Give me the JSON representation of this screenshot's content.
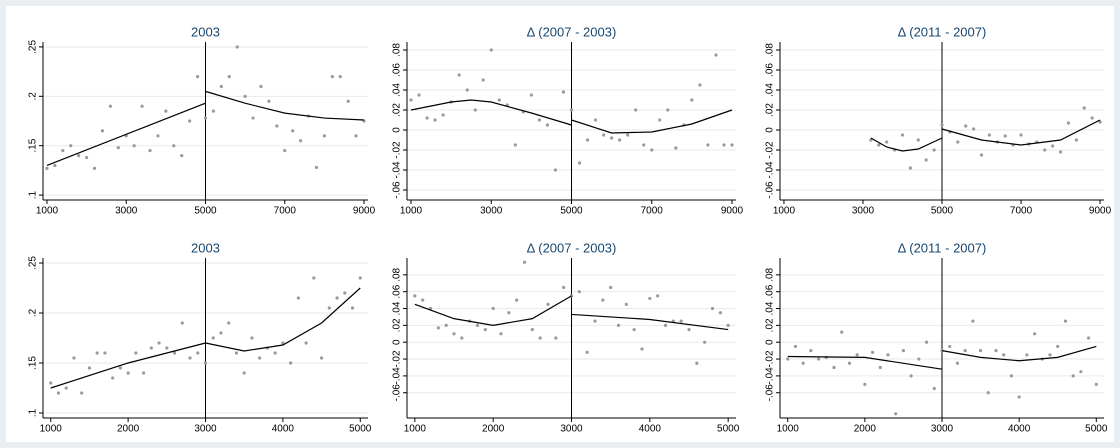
{
  "chart_data": [
    {
      "type": "scatter",
      "title": "2003",
      "points": {
        "color": "#9a9a9a",
        "x": [
          1000,
          1200,
          1400,
          1600,
          1800,
          2000,
          2200,
          2400,
          2600,
          2800,
          3000,
          3200,
          3400,
          3600,
          3800,
          4000,
          4200,
          4400,
          4600,
          4800,
          5000,
          5200,
          5400,
          5600,
          5800,
          6000,
          6200,
          6400,
          6600,
          6800,
          7000,
          7200,
          7400,
          7600,
          7800,
          8000,
          8200,
          8400,
          8600,
          8800,
          9000
        ],
        "values": [
          0.127,
          0.13,
          0.145,
          0.15,
          0.14,
          0.138,
          0.127,
          0.165,
          0.19,
          0.148,
          0.16,
          0.15,
          0.19,
          0.145,
          0.16,
          0.185,
          0.15,
          0.14,
          0.175,
          0.22,
          0.178,
          0.185,
          0.21,
          0.22,
          0.25,
          0.2,
          0.178,
          0.21,
          0.195,
          0.17,
          0.145,
          0.165,
          0.155,
          0.18,
          0.128,
          0.16,
          0.22,
          0.22,
          0.195,
          0.16,
          0.175
        ]
      },
      "fits": [
        {
          "x": [
            1000,
            5000
          ],
          "values": [
            0.13,
            0.193
          ]
        },
        {
          "x": [
            5000,
            6000,
            7000,
            8000,
            9000
          ],
          "values": [
            0.205,
            0.193,
            0.183,
            0.178,
            0.176
          ]
        }
      ],
      "fit_color": "#000000",
      "cutoff": 5000,
      "xlim": [
        900,
        9100
      ],
      "ylim": [
        0.095,
        0.255
      ],
      "xticks": [
        1000,
        3000,
        5000,
        7000,
        9000
      ],
      "yticks": [
        {
          "value": 0.1,
          "label": ".1"
        },
        {
          "value": 0.15,
          "label": ".15"
        },
        {
          "value": 0.2,
          "label": ".2"
        },
        {
          "value": 0.25,
          "label": ".25"
        }
      ],
      "grid": true
    },
    {
      "type": "scatter",
      "title": "Δ (2007 - 2003)",
      "points": {
        "color": "#9a9a9a",
        "x": [
          1000,
          1200,
          1400,
          1600,
          1800,
          2000,
          2200,
          2400,
          2600,
          2800,
          3000,
          3200,
          3400,
          3600,
          3800,
          4000,
          4200,
          4400,
          4600,
          4800,
          5000,
          5200,
          5400,
          5600,
          5800,
          6000,
          6200,
          6400,
          6600,
          6800,
          7000,
          7200,
          7400,
          7600,
          7800,
          8000,
          8200,
          8400,
          8600,
          8800,
          9000
        ],
        "values": [
          0.03,
          0.035,
          0.012,
          0.01,
          0.015,
          0.028,
          0.055,
          0.04,
          0.02,
          0.05,
          0.08,
          0.03,
          0.025,
          -0.015,
          0.018,
          0.035,
          0.01,
          0.005,
          -0.04,
          0.038,
          0.02,
          -0.033,
          -0.01,
          0.01,
          -0.005,
          -0.008,
          -0.01,
          -0.005,
          0.02,
          -0.015,
          -0.02,
          0.01,
          0.02,
          -0.018,
          0.005,
          0.03,
          0.045,
          -0.015,
          0.075,
          -0.015,
          -0.015
        ]
      },
      "fits": [
        {
          "x": [
            1000,
            2000,
            2500,
            3000,
            4000,
            5000
          ],
          "values": [
            0.02,
            0.028,
            0.03,
            0.028,
            0.017,
            0.005
          ]
        },
        {
          "x": [
            5000,
            6000,
            7000,
            8000,
            9000
          ],
          "values": [
            0.01,
            -0.003,
            -0.002,
            0.006,
            0.02
          ]
        }
      ],
      "fit_color": "#000000",
      "cutoff": 5000,
      "xlim": [
        900,
        9100
      ],
      "ylim": [
        -0.07,
        0.088
      ],
      "xticks": [
        1000,
        3000,
        5000,
        7000,
        9000
      ],
      "yticks": [
        {
          "value": -0.06,
          "label": "-.06"
        },
        {
          "value": -0.04,
          "label": "-.04"
        },
        {
          "value": -0.02,
          "label": "-.02"
        },
        0,
        {
          "value": 0.02,
          "label": ".02"
        },
        {
          "value": 0.04,
          "label": ".04"
        },
        {
          "value": 0.06,
          "label": ".06"
        },
        {
          "value": 0.08,
          "label": ".08"
        }
      ],
      "grid": true
    },
    {
      "type": "scatter",
      "title": "Δ (2011 - 2007)",
      "points": {
        "color": "#9a9a9a",
        "x": [
          3200,
          3400,
          3600,
          3800,
          4000,
          4200,
          4400,
          4600,
          4800,
          5000,
          5200,
          5400,
          5600,
          5800,
          6000,
          6200,
          6400,
          6600,
          6800,
          7000,
          7200,
          7400,
          7600,
          7800,
          8000,
          8200,
          8400,
          8600,
          8800,
          9000
        ],
        "values": [
          -0.01,
          -0.015,
          -0.012,
          -0.02,
          -0.005,
          -0.038,
          -0.01,
          -0.03,
          -0.02,
          0.005,
          -0.002,
          -0.012,
          0.004,
          0.001,
          -0.025,
          -0.005,
          -0.012,
          -0.006,
          -0.015,
          -0.005,
          -0.014,
          -0.012,
          -0.02,
          -0.016,
          -0.022,
          0.007,
          -0.01,
          0.022,
          0.012,
          0.008
        ]
      },
      "fits": [
        {
          "x": [
            3200,
            3600,
            4000,
            4400,
            5000
          ],
          "values": [
            -0.008,
            -0.017,
            -0.021,
            -0.019,
            -0.008
          ]
        },
        {
          "x": [
            5000,
            6000,
            7000,
            8000,
            9000
          ],
          "values": [
            0.001,
            -0.01,
            -0.015,
            -0.01,
            0.01
          ]
        }
      ],
      "fit_color": "#000000",
      "cutoff": 5000,
      "xlim": [
        900,
        9100
      ],
      "ylim": [
        -0.07,
        0.088
      ],
      "xticks": [
        1000,
        3000,
        5000,
        7000,
        9000
      ],
      "yticks": [
        {
          "value": -0.06,
          "label": "-.06"
        },
        {
          "value": -0.04,
          "label": "-.04"
        },
        {
          "value": -0.02,
          "label": "-.02"
        },
        0,
        {
          "value": 0.02,
          "label": ".02"
        },
        {
          "value": 0.04,
          "label": ".04"
        },
        {
          "value": 0.06,
          "label": ".06"
        },
        {
          "value": 0.08,
          "label": ".08"
        }
      ],
      "grid": true
    },
    {
      "type": "scatter",
      "title": "2003",
      "points": {
        "color": "#9a9a9a",
        "x": [
          1000,
          1100,
          1200,
          1300,
          1400,
          1500,
          1600,
          1700,
          1800,
          1900,
          2000,
          2100,
          2200,
          2300,
          2400,
          2500,
          2600,
          2700,
          2800,
          2900,
          3000,
          3100,
          3200,
          3300,
          3400,
          3500,
          3600,
          3700,
          3800,
          3900,
          4000,
          4100,
          4200,
          4300,
          4400,
          4500,
          4600,
          4700,
          4800,
          4900,
          5000
        ],
        "values": [
          0.13,
          0.12,
          0.125,
          0.155,
          0.12,
          0.145,
          0.16,
          0.16,
          0.135,
          0.145,
          0.14,
          0.16,
          0.14,
          0.165,
          0.17,
          0.165,
          0.16,
          0.19,
          0.155,
          0.16,
          0.15,
          0.175,
          0.18,
          0.19,
          0.16,
          0.14,
          0.175,
          0.155,
          0.165,
          0.16,
          0.17,
          0.15,
          0.215,
          0.17,
          0.235,
          0.155,
          0.205,
          0.215,
          0.22,
          0.205,
          0.235
        ]
      },
      "fits": [
        {
          "x": [
            1000,
            2000,
            3000
          ],
          "values": [
            0.125,
            0.15,
            0.17
          ]
        },
        {
          "x": [
            3000,
            3500,
            4000,
            4500,
            5000
          ],
          "values": [
            0.17,
            0.162,
            0.168,
            0.19,
            0.225
          ]
        }
      ],
      "fit_color": "#000000",
      "cutoff": 3000,
      "xlim": [
        900,
        5100
      ],
      "ylim": [
        0.095,
        0.255
      ],
      "xticks": [
        1000,
        2000,
        3000,
        4000,
        5000
      ],
      "yticks": [
        {
          "value": 0.1,
          "label": ".1"
        },
        {
          "value": 0.15,
          "label": ".15"
        },
        {
          "value": 0.2,
          "label": ".2"
        },
        {
          "value": 0.25,
          "label": ".25"
        }
      ],
      "grid": true
    },
    {
      "type": "scatter",
      "title": "Δ (2007 - 2003)",
      "points": {
        "color": "#9a9a9a",
        "x": [
          1000,
          1100,
          1200,
          1300,
          1400,
          1500,
          1600,
          1700,
          1800,
          1900,
          2000,
          2100,
          2200,
          2300,
          2400,
          2500,
          2600,
          2700,
          2800,
          2900,
          3000,
          3100,
          3200,
          3300,
          3400,
          3500,
          3600,
          3700,
          3800,
          3900,
          4000,
          4100,
          4200,
          4300,
          4400,
          4500,
          4600,
          4700,
          4800,
          4900,
          5000
        ],
        "values": [
          0.055,
          0.05,
          0.04,
          0.017,
          0.02,
          0.01,
          0.005,
          0.025,
          0.02,
          0.015,
          0.04,
          0.01,
          0.035,
          0.05,
          0.095,
          0.015,
          0.005,
          0.045,
          0.005,
          0.065,
          0.055,
          0.06,
          -0.012,
          0.025,
          0.05,
          0.065,
          0.02,
          0.045,
          0.015,
          -0.008,
          0.052,
          0.055,
          0.02,
          0.025,
          0.025,
          0.015,
          -0.025,
          0.0,
          0.04,
          0.035,
          0.02
        ]
      },
      "fits": [
        {
          "x": [
            1000,
            1500,
            2000,
            2500,
            3000
          ],
          "values": [
            0.045,
            0.028,
            0.02,
            0.028,
            0.055
          ]
        },
        {
          "x": [
            3000,
            4000,
            5000
          ],
          "values": [
            0.033,
            0.027,
            0.015
          ]
        }
      ],
      "fit_color": "#000000",
      "cutoff": 3000,
      "xlim": [
        900,
        5100
      ],
      "ylim": [
        -0.09,
        0.1
      ],
      "xticks": [
        1000,
        2000,
        3000,
        4000,
        5000
      ],
      "yticks": [
        {
          "value": -0.06,
          "label": "-.06"
        },
        {
          "value": -0.04,
          "label": "-.04"
        },
        {
          "value": -0.02,
          "label": "-.02"
        },
        0,
        {
          "value": 0.02,
          "label": ".02"
        },
        {
          "value": 0.04,
          "label": ".04"
        },
        {
          "value": 0.06,
          "label": ".06"
        },
        {
          "value": 0.08,
          "label": ".08"
        }
      ],
      "grid": true
    },
    {
      "type": "scatter",
      "title": "Δ (2011 - 2007)",
      "points": {
        "color": "#9a9a9a",
        "x": [
          1000,
          1100,
          1200,
          1300,
          1400,
          1500,
          1600,
          1700,
          1800,
          1900,
          2000,
          2100,
          2200,
          2300,
          2400,
          2500,
          2600,
          2700,
          2800,
          2900,
          3000,
          3100,
          3200,
          3300,
          3400,
          3500,
          3600,
          3700,
          3800,
          3900,
          4000,
          4100,
          4200,
          4300,
          4400,
          4500,
          4600,
          4700,
          4800,
          4900,
          5000
        ],
        "values": [
          -0.02,
          -0.005,
          -0.025,
          -0.01,
          -0.02,
          -0.018,
          -0.03,
          0.012,
          -0.025,
          -0.015,
          -0.05,
          -0.012,
          -0.03,
          -0.015,
          -0.085,
          -0.01,
          -0.04,
          -0.02,
          0.0,
          -0.055,
          -0.01,
          -0.005,
          -0.025,
          -0.01,
          0.025,
          -0.01,
          -0.06,
          -0.01,
          -0.015,
          -0.04,
          -0.065,
          -0.015,
          0.01,
          -0.02,
          -0.015,
          -0.005,
          0.025,
          -0.04,
          -0.035,
          0.005,
          -0.05
        ]
      },
      "fits": [
        {
          "x": [
            1000,
            2000,
            3000
          ],
          "values": [
            -0.017,
            -0.018,
            -0.032
          ]
        },
        {
          "x": [
            3000,
            3500,
            4000,
            4500,
            5000
          ],
          "values": [
            -0.01,
            -0.018,
            -0.022,
            -0.018,
            -0.005
          ]
        }
      ],
      "fit_color": "#000000",
      "cutoff": 3000,
      "xlim": [
        900,
        5100
      ],
      "ylim": [
        -0.09,
        0.1
      ],
      "xticks": [
        1000,
        2000,
        3000,
        4000,
        5000
      ],
      "yticks": [
        {
          "value": -0.06,
          "label": "-.06"
        },
        {
          "value": -0.04,
          "label": "-.04"
        },
        {
          "value": -0.02,
          "label": "-.02"
        },
        0,
        {
          "value": 0.02,
          "label": ".02"
        },
        {
          "value": 0.04,
          "label": ".04"
        },
        {
          "value": 0.06,
          "label": ".06"
        },
        {
          "value": 0.08,
          "label": ".08"
        }
      ],
      "grid": true
    }
  ]
}
